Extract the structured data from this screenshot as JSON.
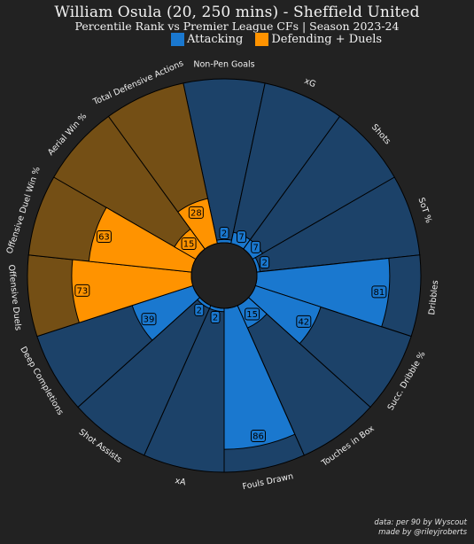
{
  "title": "William Osula (20, 250 mins) - Sheffield United",
  "subtitle": "Percentile Rank vs Premier League CFs | Season 2023-24",
  "legend": {
    "attacking_label": "Attacking",
    "defending_label": "Defending + Duels",
    "attacking_color": "#1a78cf",
    "defending_color": "#ff9300"
  },
  "footer": {
    "line1": "data: per 90 by Wyscout",
    "line2": "made by @rileyjroberts"
  },
  "colors": {
    "background": "#222222",
    "attacking_bg": "#1c4269",
    "defending_bg": "#744f15"
  },
  "chart_data": {
    "type": "pizza",
    "scale": [
      0,
      100
    ],
    "categories": [
      "Non-Pen Goals",
      "xG",
      "Shots",
      "SoT %",
      "Dribbles",
      "Succ. Dribble %",
      "Touches in Box",
      "Fouls Drawn",
      "xA",
      "Shot Assists",
      "Deep Completions",
      "Offensive Duels",
      "Offensive Duel Win %",
      "Aerial Win %",
      "Total Defensive Actions"
    ],
    "values": [
      2,
      7,
      7,
      2,
      81,
      42,
      15,
      86,
      2,
      2,
      39,
      73,
      63,
      15,
      28
    ],
    "groups": [
      "Attacking",
      "Attacking",
      "Attacking",
      "Attacking",
      "Attacking",
      "Attacking",
      "Attacking",
      "Attacking",
      "Attacking",
      "Attacking",
      "Attacking",
      "Defending + Duels",
      "Defending + Duels",
      "Defending + Duels",
      "Defending + Duels"
    ]
  }
}
